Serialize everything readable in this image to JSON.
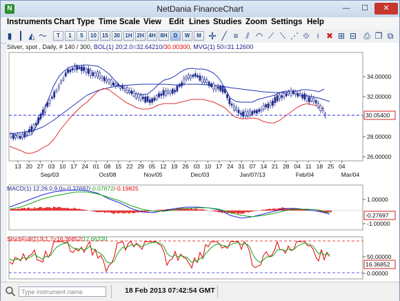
{
  "window": {
    "title": "NetDania FinanceChart",
    "min_glyph": "—",
    "max_glyph": "☐",
    "close_glyph": "✕"
  },
  "menu": [
    "Instruments",
    "Chart Type",
    "Time Scale",
    "View",
    "Edit",
    "Lines",
    "Studies",
    "Zoom",
    "Settings",
    "Help"
  ],
  "toolbar": {
    "timeframes": [
      {
        "label": "T",
        "selected": false
      },
      {
        "label": "1",
        "selected": false
      },
      {
        "label": "5",
        "selected": false
      },
      {
        "label": "10",
        "selected": false
      },
      {
        "label": "15",
        "selected": false
      },
      {
        "label": "30",
        "selected": false
      },
      {
        "label": "1H",
        "selected": false
      },
      {
        "label": "2H",
        "selected": false
      },
      {
        "label": "4H",
        "selected": false
      },
      {
        "label": "8H",
        "selected": false
      },
      {
        "label": "D",
        "selected": true
      },
      {
        "label": "W",
        "selected": false
      },
      {
        "label": "M",
        "selected": false
      }
    ]
  },
  "chart": {
    "header": "Silver, spot , Daily, # 140 / 300, ",
    "bol_label": "BOL(1) 20;2.0=32.64210/",
    "bol_lower": "30.00300",
    "mvg_label": ", MVG(1) 50=31.12600",
    "current_price": "30.05400",
    "price_ticks": [
      "34.00000",
      "32.00000",
      "30.00000",
      "28.00000",
      "26.00000"
    ],
    "date_ticks": [
      "13",
      "20",
      "27",
      "03",
      "10",
      "17",
      "24",
      "01",
      "08",
      "15",
      "22",
      "29",
      "05",
      "12",
      "19",
      "26",
      "03",
      "10",
      "17",
      "24",
      "31",
      "07",
      "14",
      "21",
      "28",
      "04",
      "11",
      "18",
      "25",
      "04"
    ],
    "month_labels": [
      "Sep/03",
      "Oct/08",
      "Nov/05",
      "Dec/03",
      "Jan/07/13",
      "Feb/04",
      "Mar/04"
    ],
    "macd_label": "MACD(1) 12;26.0,9.0=-0.27697/",
    "macd_signal": "-0.07872",
    "macd_hist": "/-0.19825",
    "macd_ticks": [
      "1.00000",
      "-1.00000"
    ],
    "macd_current": "-0.27697",
    "stoch_label": "StochFull(1) 9;1,7=16.36852/",
    "stoch_d": "17.66330",
    "stoch_ticks": [
      "50.00000",
      "0.00000"
    ],
    "stoch_current": "16.36852",
    "colors": {
      "candle": "#1e2a8c",
      "upper_band": "#2433b5",
      "lower_band": "#e03030",
      "mvg": "#2433b5",
      "price_line": "#1f2ad8",
      "macd_hist": "#e00000",
      "macd_line": "#1f2ad8",
      "signal_line": "#19a319",
      "stoch_k": "#e00000",
      "stoch_d": "#19a319"
    }
  },
  "status": {
    "search_placeholder": "Type instrument name",
    "timestamp": "18 Feb 2013 07:42:54 GMT"
  }
}
